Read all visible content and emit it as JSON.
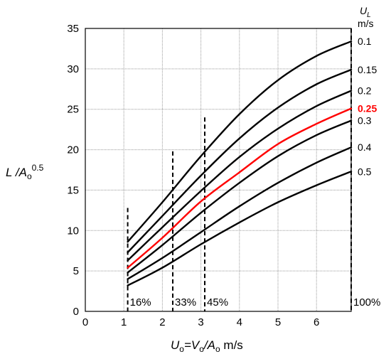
{
  "chart_data": {
    "type": "line",
    "xlabel_parts": [
      "U",
      "o",
      "=V",
      "o",
      "/A",
      "o",
      "   m/s"
    ],
    "ylabel_parts": [
      "L /A",
      "o",
      "0.5"
    ],
    "legend_title": [
      "U",
      "L",
      "m/s"
    ],
    "xlim": [
      0,
      6.9
    ],
    "ylim": [
      0,
      35
    ],
    "x_ticks": [
      0,
      1,
      2,
      3,
      4,
      5,
      6
    ],
    "y_ticks": [
      0,
      5,
      10,
      15,
      20,
      25,
      30,
      35
    ],
    "grid": true,
    "highlight_color": "#ff0000",
    "line_color": "#000000",
    "series": [
      {
        "name": "0.1",
        "highlight": false,
        "points": [
          [
            1.1,
            8.6
          ],
          [
            2,
            13.5
          ],
          [
            3,
            19.2
          ],
          [
            4,
            24.4
          ],
          [
            5,
            28.6
          ],
          [
            6,
            31.6
          ],
          [
            6.9,
            33.4
          ]
        ]
      },
      {
        "name": "0.15",
        "highlight": false,
        "points": [
          [
            1.1,
            7.3
          ],
          [
            2,
            11.8
          ],
          [
            3,
            16.8
          ],
          [
            4,
            21.4
          ],
          [
            5,
            25.2
          ],
          [
            6,
            28.1
          ],
          [
            6.9,
            29.9
          ]
        ]
      },
      {
        "name": "0.2",
        "highlight": false,
        "points": [
          [
            1.1,
            6.3
          ],
          [
            2,
            10.4
          ],
          [
            3,
            14.9
          ],
          [
            4,
            19.1
          ],
          [
            5,
            22.6
          ],
          [
            6,
            25.4
          ],
          [
            6.9,
            27.3
          ]
        ]
      },
      {
        "name": "0.25",
        "highlight": true,
        "points": [
          [
            1.1,
            5.4
          ],
          [
            2,
            9.1
          ],
          [
            3,
            13.6
          ],
          [
            4,
            17.2
          ],
          [
            5,
            20.7
          ],
          [
            6,
            23.2
          ],
          [
            6.9,
            25.1
          ]
        ]
      },
      {
        "name": "0.3",
        "highlight": false,
        "points": [
          [
            1.1,
            4.8
          ],
          [
            2,
            8.2
          ],
          [
            3,
            12.2
          ],
          [
            4,
            15.9
          ],
          [
            5,
            19.2
          ],
          [
            6,
            21.8
          ],
          [
            6.9,
            23.6
          ]
        ]
      },
      {
        "name": "0.4",
        "highlight": false,
        "points": [
          [
            1.1,
            4.0
          ],
          [
            2,
            6.6
          ],
          [
            3,
            9.8
          ],
          [
            4,
            13.0
          ],
          [
            5,
            15.9
          ],
          [
            6,
            18.4
          ],
          [
            6.9,
            20.3
          ]
        ]
      },
      {
        "name": "0.5",
        "highlight": false,
        "points": [
          [
            1.1,
            3.2
          ],
          [
            2,
            5.4
          ],
          [
            3,
            8.3
          ],
          [
            4,
            11.0
          ],
          [
            5,
            13.5
          ],
          [
            6,
            15.6
          ],
          [
            6.9,
            17.3
          ]
        ]
      }
    ],
    "vertical_markers": [
      {
        "x": 1.1,
        "y_top": 12.8,
        "label": "16%"
      },
      {
        "x": 2.27,
        "y_top": 19.8,
        "label": "33%"
      },
      {
        "x": 3.1,
        "y_top": 24.0,
        "label": "45%"
      },
      {
        "x": 6.9,
        "y_top": 35.0,
        "label": "100%"
      }
    ]
  }
}
